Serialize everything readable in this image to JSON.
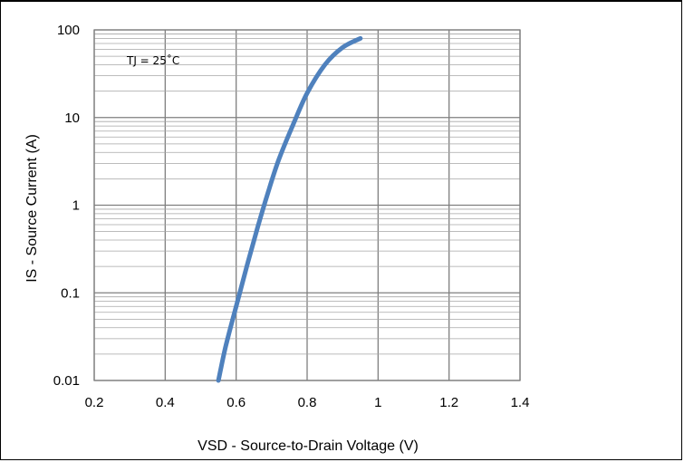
{
  "chart_data": {
    "type": "line",
    "title": "",
    "xlabel": "VSD - Source-to-Drain Voltage (V)",
    "ylabel": "IS - Source Current (A)",
    "xlim": [
      0.2,
      1.4
    ],
    "ylim": [
      0.01,
      100
    ],
    "yscale": "log",
    "grid": true,
    "x_ticks": [
      0.2,
      0.4,
      0.6,
      0.8,
      1,
      1.2,
      1.4
    ],
    "x_tick_labels": [
      "0.2",
      "0.4",
      "0.6",
      "0.8",
      "1",
      "1.2",
      "1.4"
    ],
    "y_ticks": [
      0.01,
      0.1,
      1,
      10,
      100
    ],
    "y_tick_labels": [
      "0.01",
      "0.1",
      "1",
      "10",
      "100"
    ],
    "annotation": "TJ = 25˚C",
    "series_color": "#4f81bd",
    "series": [
      {
        "name": "",
        "x": [
          0.55,
          0.57,
          0.6,
          0.63,
          0.66,
          0.69,
          0.72,
          0.76,
          0.8,
          0.85,
          0.9,
          0.95
        ],
        "y": [
          0.01,
          0.024,
          0.07,
          0.2,
          0.55,
          1.4,
          3.3,
          8.2,
          19,
          40,
          63,
          80
        ]
      }
    ]
  }
}
